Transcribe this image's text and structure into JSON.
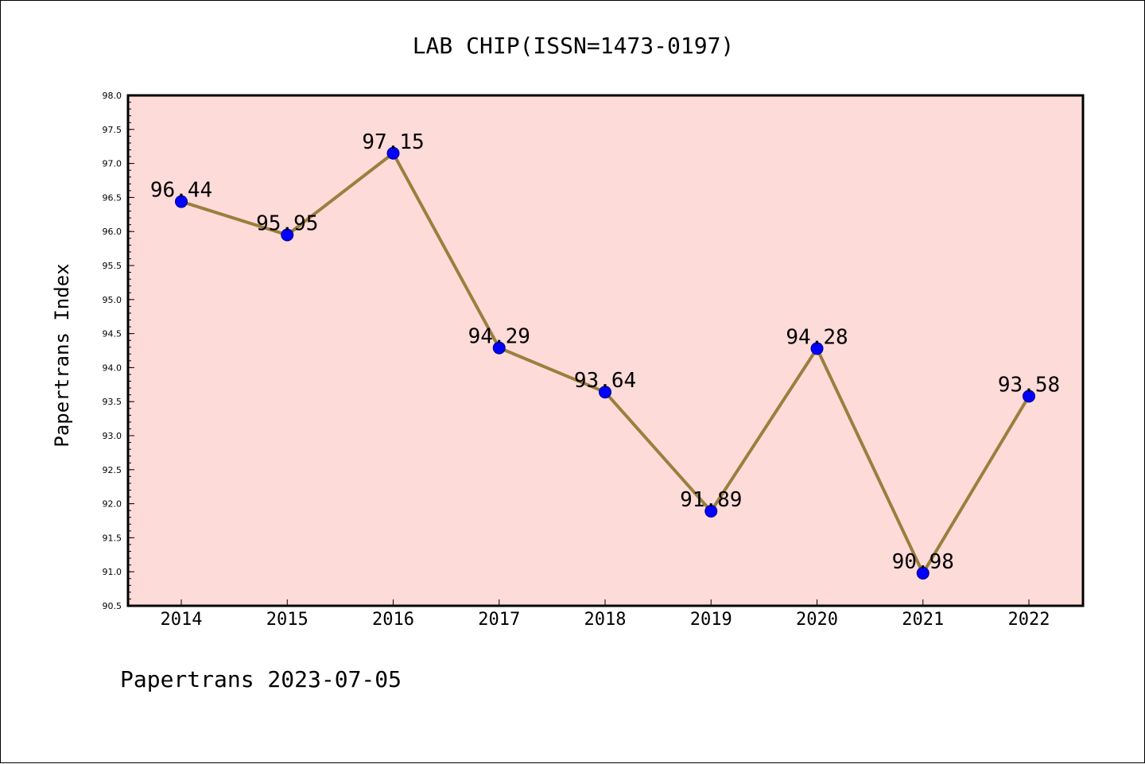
{
  "chart_data": {
    "type": "line",
    "title": "LAB CHIP(ISSN=1473-0197)",
    "xlabel": "",
    "ylabel": "Papertrans Index",
    "categories": [
      "2014",
      "2015",
      "2016",
      "2017",
      "2018",
      "2019",
      "2020",
      "2021",
      "2022"
    ],
    "series": [
      {
        "values": [
          96.44,
          95.95,
          97.15,
          94.29,
          93.64,
          91.89,
          94.28,
          90.98,
          93.58
        ],
        "labels": [
          "96.44",
          "95.95",
          "97.15",
          "94.29",
          "93.64",
          "91.89",
          "94.28",
          "90.98",
          "93.58"
        ]
      }
    ],
    "ylim": [
      90.5,
      98.0
    ],
    "yticks": [
      "90.5",
      "91.0",
      "91.5",
      "92.0",
      "92.5",
      "93.0",
      "93.5",
      "94.0",
      "94.5",
      "95.0",
      "95.5",
      "96.0",
      "96.5",
      "97.0",
      "97.5",
      "98.0"
    ],
    "grid": false,
    "footer": "Papertrans 2023-07-05",
    "colors": {
      "plot_background": "#fddbd9",
      "line": "#9a7f3e",
      "marker": "#0000ff",
      "marker_edge": "#00008b"
    }
  }
}
